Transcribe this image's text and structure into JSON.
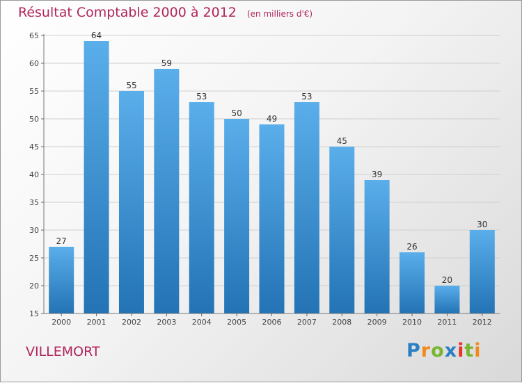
{
  "header": {
    "title": "Résultat Comptable 2000 à 2012",
    "unit": "(en milliers d'€)"
  },
  "footer": {
    "city": "VILLEMORT",
    "brand": "Proxiti"
  },
  "colors": {
    "title": "#b0245c",
    "bar_top": "#5aaeea",
    "bar_bottom": "#2373b5"
  },
  "chart_data": {
    "type": "bar",
    "title": "Résultat Comptable 2000 à 2012",
    "xlabel": "",
    "ylabel": "(en milliers d'€)",
    "categories": [
      "2000",
      "2001",
      "2002",
      "2003",
      "2004",
      "2005",
      "2006",
      "2007",
      "2008",
      "2009",
      "2010",
      "2011",
      "2012"
    ],
    "values": [
      27,
      64,
      55,
      59,
      53,
      50,
      49,
      53,
      45,
      39,
      26,
      20,
      30
    ],
    "ylim": [
      15,
      65
    ],
    "yticks": [
      15,
      20,
      25,
      30,
      35,
      40,
      45,
      50,
      55,
      60,
      65
    ],
    "grid": true,
    "data_labels": true
  }
}
